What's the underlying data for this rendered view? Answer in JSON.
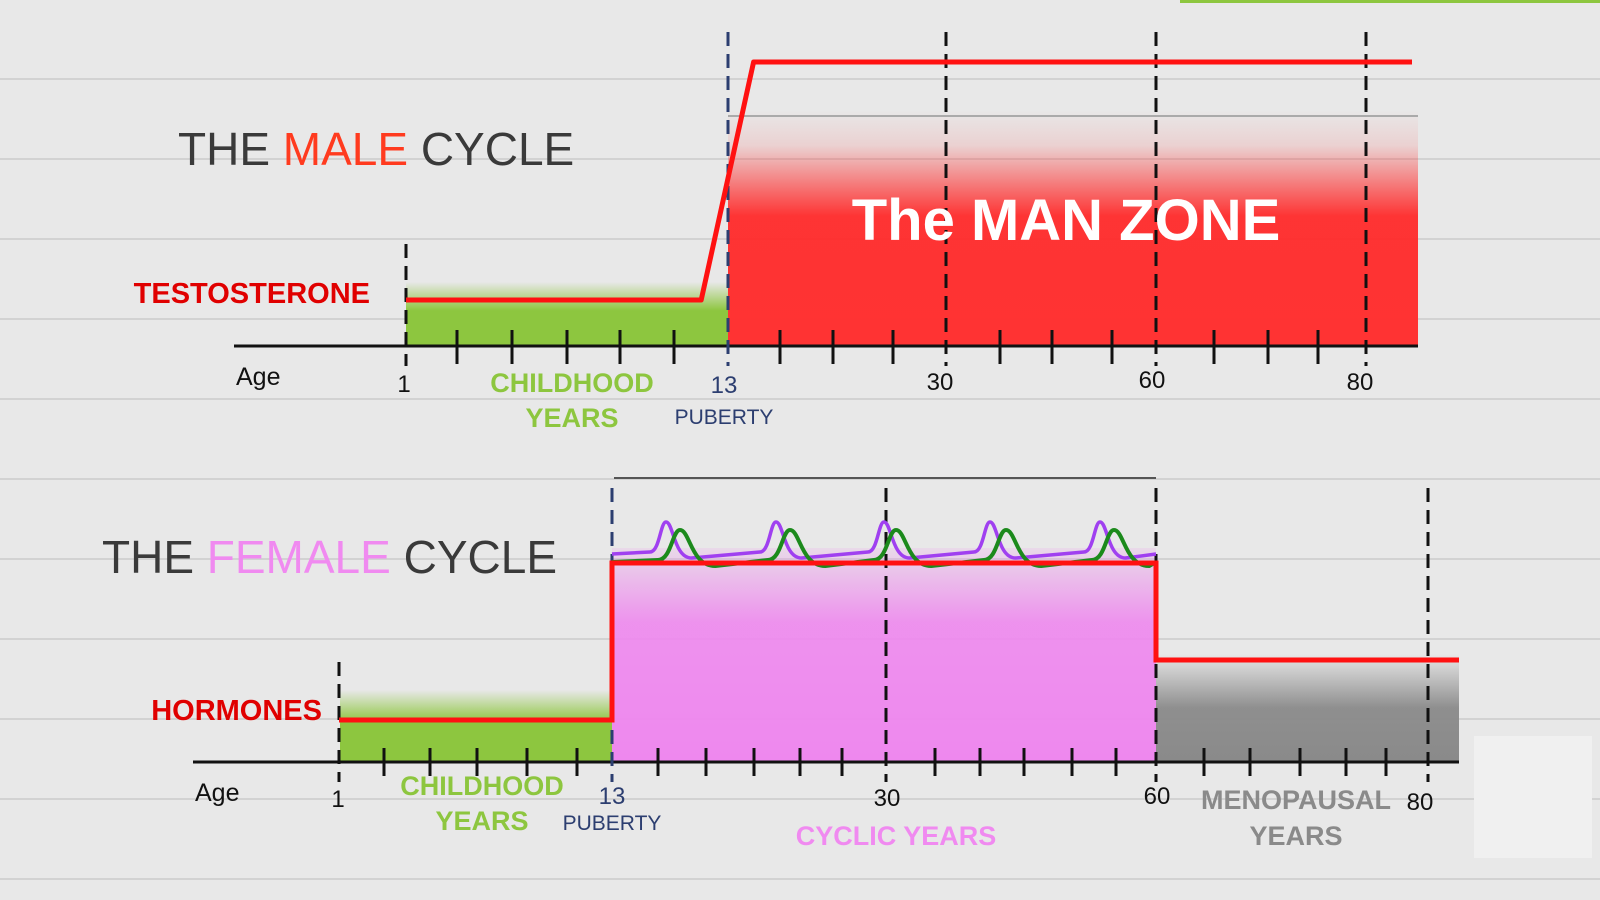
{
  "male": {
    "title": {
      "prefix": "THE ",
      "accent": "MALE",
      "suffix": " CYCLE"
    },
    "hormone_label": "TESTOSTERONE",
    "age_label": "Age",
    "ticks": {
      "t1": "1",
      "t13": "13",
      "t30": "30",
      "t60": "60",
      "t80": "80"
    },
    "childhood": {
      "line1": "CHILDHOOD",
      "line2": "YEARS"
    },
    "puberty": "PUBERTY",
    "zone_label": "The MAN ZONE",
    "series": {
      "name": "",
      "points": [
        [
          1,
          1
        ],
        [
          12,
          1
        ],
        [
          15,
          7
        ],
        [
          80,
          7
        ]
      ]
    }
  },
  "female": {
    "title": {
      "prefix": "THE ",
      "accent": "FEMALE",
      "suffix": " CYCLE"
    },
    "hormone_label": "HORMONES",
    "age_label": "Age",
    "ticks": {
      "t1": "1",
      "t13": "13",
      "t30": "30",
      "t60": "60",
      "t80": "80"
    },
    "childhood": {
      "line1": "CHILDHOOD",
      "line2": "YEARS"
    },
    "puberty": "PUBERTY",
    "cyclic": "CYCLIC YEARS",
    "menopausal": {
      "line1": "MENOPAUSAL",
      "line2": "YEARS"
    },
    "series": {
      "name": "",
      "points": [
        [
          1,
          1
        ],
        [
          13,
          1
        ],
        [
          13,
          5
        ],
        [
          60,
          5
        ],
        [
          60,
          3
        ],
        [
          80,
          3
        ]
      ]
    }
  },
  "colors": {
    "title_dark": "#3a3a3a",
    "male_accent": "#ff3b1f",
    "female_accent": "#f08af0",
    "red": "#ff1111",
    "green": "#8dc63f",
    "pink": "#ee88ee",
    "gray": "#8a8a8a",
    "navy": "#2c3e70",
    "purple": "#a040f0",
    "dark_green": "#1c8a1c"
  }
}
